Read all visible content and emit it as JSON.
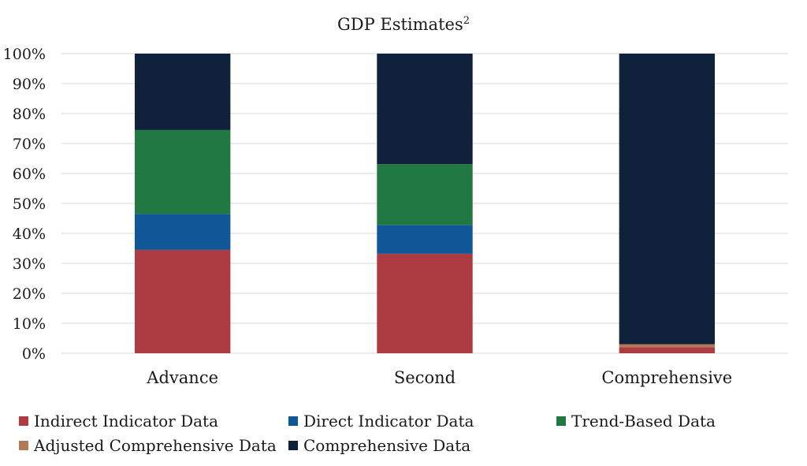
{
  "chart_data": {
    "type": "bar",
    "stacked": true,
    "title": "GDP Estimates",
    "title_superscript": "2",
    "xlabel": "",
    "ylabel": "",
    "ylim": [
      0,
      100
    ],
    "yticks": [
      "0%",
      "10%",
      "20%",
      "30%",
      "40%",
      "50%",
      "60%",
      "70%",
      "80%",
      "90%",
      "100%"
    ],
    "grid": true,
    "legend_position": "bottom",
    "categories": [
      "Advance",
      "Second",
      "Comprehensive"
    ],
    "series": [
      {
        "name": "Indirect Indicator Data",
        "color": "#ad3c42",
        "values": [
          34.5,
          33.2,
          2.0
        ]
      },
      {
        "name": "Direct Indicator Data",
        "color": "#0f5797",
        "values": [
          12.0,
          9.6,
          0.0
        ]
      },
      {
        "name": "Trend-Based Data",
        "color": "#217843",
        "values": [
          28.0,
          20.3,
          0.0
        ]
      },
      {
        "name": "Adjusted Comprehensive Data",
        "color": "#b07a57",
        "values": [
          0.0,
          0.0,
          1.0
        ]
      },
      {
        "name": "Comprehensive Data",
        "color": "#10213b",
        "values": [
          25.5,
          36.9,
          97.0
        ]
      }
    ]
  }
}
